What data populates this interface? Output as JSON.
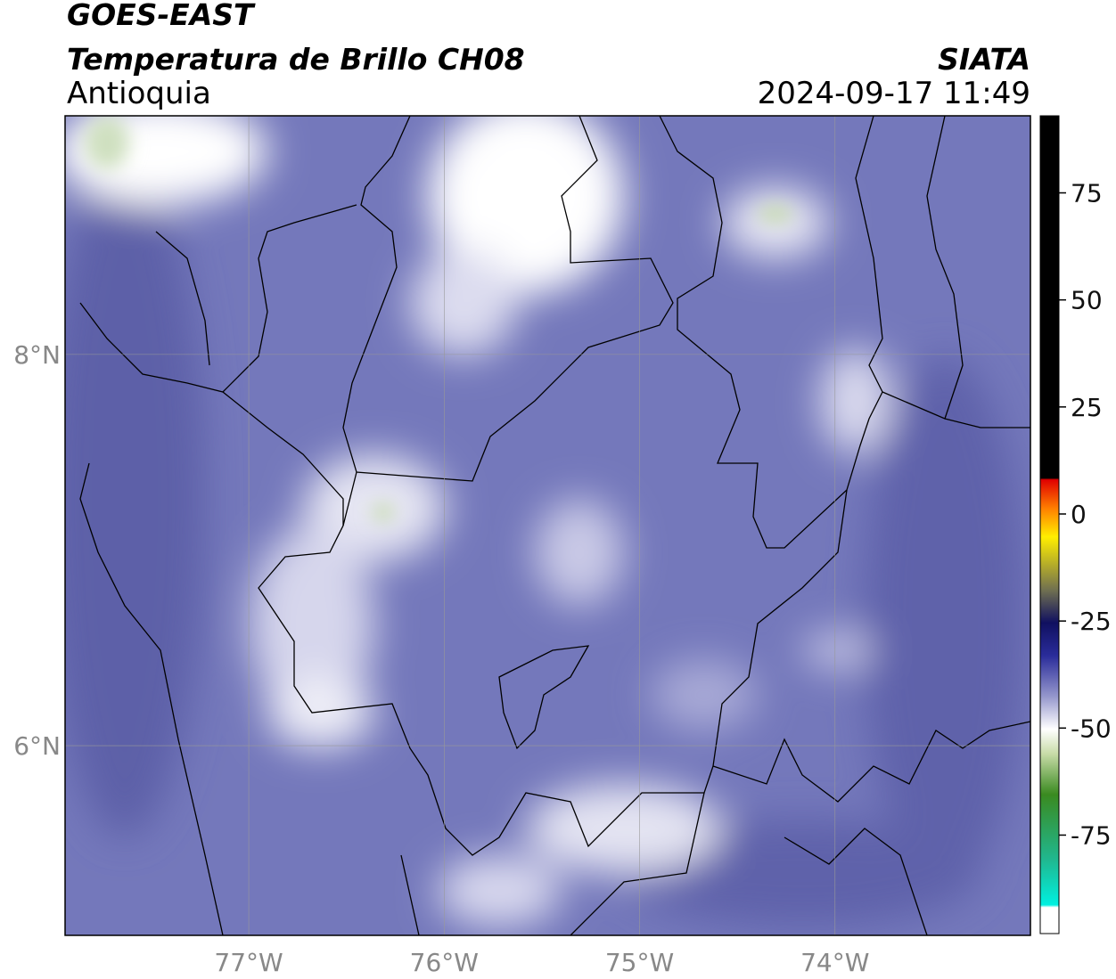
{
  "header": {
    "title": "GOES-EAST",
    "subtitle": "Temperatura de Brillo CH08",
    "region": "Antioquia",
    "source": "SIATA",
    "timestamp": "2024-09-17 11:49"
  },
  "map": {
    "xlim": [
      -77.94,
      -73.0
    ],
    "ylim": [
      5.03,
      9.22
    ],
    "xticks": [
      {
        "value": -77,
        "label": "77°W"
      },
      {
        "value": -76,
        "label": "76°W"
      },
      {
        "value": -75,
        "label": "75°W"
      },
      {
        "value": -74,
        "label": "74°W"
      }
    ],
    "yticks": [
      {
        "value": 6,
        "label": "6°N"
      },
      {
        "value": 8,
        "label": "8°N"
      }
    ]
  },
  "colorbar": {
    "lim": [
      -98,
      93
    ],
    "ticks": [
      -75,
      -50,
      -25,
      0,
      25,
      50,
      75
    ]
  }
}
